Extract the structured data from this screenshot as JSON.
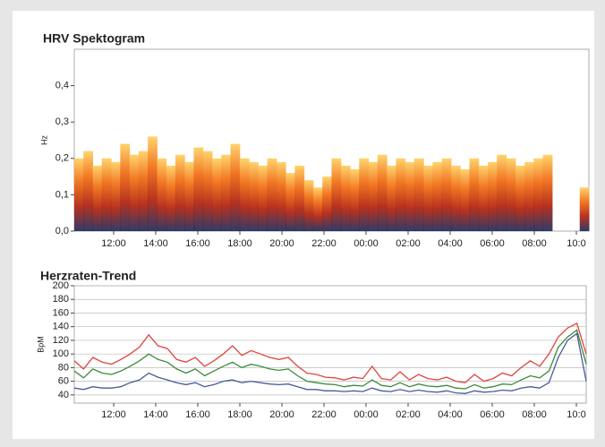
{
  "chart_data": [
    {
      "type": "spectrogram",
      "title": "HRV Spektogram",
      "ylabel": "Hz",
      "ylim": [
        0,
        0.5
      ],
      "yticks": [
        {
          "value": 0,
          "label": "0,0"
        },
        {
          "value": 0.1,
          "label": "0,1"
        },
        {
          "value": 0.2,
          "label": "0,2"
        },
        {
          "value": 0.3,
          "label": "0,3"
        },
        {
          "value": 0.4,
          "label": "0,4"
        }
      ],
      "xticks": [
        "12:00",
        "14:00",
        "16:00",
        "18:00",
        "20:00",
        "22:00",
        "00:00",
        "02:00",
        "04:00",
        "06:00",
        "08:00",
        "10:0"
      ],
      "colors": [
        "#1e2a5a",
        "#b0200c",
        "#f06a10",
        "#ffd060"
      ],
      "grid": false,
      "values": [
        0.2,
        0.22,
        0.18,
        0.2,
        0.19,
        0.24,
        0.21,
        0.22,
        0.26,
        0.2,
        0.18,
        0.21,
        0.19,
        0.23,
        0.22,
        0.2,
        0.21,
        0.24,
        0.2,
        0.19,
        0.18,
        0.2,
        0.19,
        0.16,
        0.18,
        0.14,
        0.12,
        0.15,
        0.2,
        0.18,
        0.17,
        0.2,
        0.19,
        0.21,
        0.18,
        0.2,
        0.19,
        0.2,
        0.18,
        0.19,
        0.2,
        0.18,
        0.17,
        0.2,
        0.18,
        0.19,
        0.21,
        0.2,
        0.18,
        0.19,
        0.2,
        0.21,
        null,
        null,
        null,
        0.12
      ]
    },
    {
      "type": "line",
      "title": "Herzraten-Trend",
      "ylabel": "BpM",
      "ylim": [
        28,
        200
      ],
      "yticks": [
        40,
        60,
        80,
        100,
        120,
        140,
        160,
        180,
        200
      ],
      "xticks": [
        "12:00",
        "14:00",
        "16:00",
        "18:00",
        "20:00",
        "22:00",
        "00:00",
        "02:00",
        "04:00",
        "06:00",
        "08:00",
        "10:0"
      ],
      "grid": true,
      "series": [
        {
          "color": "#e0443c",
          "values": [
            90,
            78,
            95,
            88,
            85,
            92,
            100,
            110,
            128,
            112,
            108,
            92,
            88,
            95,
            82,
            90,
            100,
            112,
            98,
            105,
            100,
            95,
            92,
            95,
            82,
            72,
            70,
            66,
            65,
            62,
            66,
            64,
            82,
            64,
            62,
            74,
            62,
            70,
            64,
            62,
            66,
            60,
            58,
            70,
            60,
            64,
            72,
            68,
            80,
            90,
            82,
            100,
            125,
            138,
            145,
            100
          ]
        },
        {
          "color": "#3c8a3c",
          "values": [
            75,
            65,
            78,
            72,
            70,
            75,
            82,
            90,
            100,
            92,
            88,
            78,
            72,
            78,
            68,
            75,
            82,
            88,
            80,
            85,
            82,
            78,
            76,
            78,
            68,
            60,
            58,
            56,
            55,
            52,
            54,
            53,
            62,
            54,
            52,
            58,
            52,
            56,
            53,
            52,
            54,
            50,
            49,
            55,
            50,
            52,
            56,
            55,
            62,
            68,
            65,
            75,
            110,
            125,
            135,
            85
          ]
        },
        {
          "color": "#4a5a9a",
          "values": [
            50,
            48,
            52,
            50,
            50,
            52,
            58,
            62,
            72,
            66,
            62,
            58,
            55,
            58,
            52,
            55,
            60,
            62,
            58,
            60,
            58,
            56,
            55,
            56,
            52,
            48,
            48,
            46,
            46,
            45,
            46,
            45,
            50,
            46,
            45,
            48,
            45,
            47,
            45,
            44,
            46,
            43,
            42,
            46,
            44,
            45,
            47,
            46,
            50,
            52,
            50,
            58,
            95,
            120,
            130,
            60
          ]
        }
      ]
    }
  ]
}
